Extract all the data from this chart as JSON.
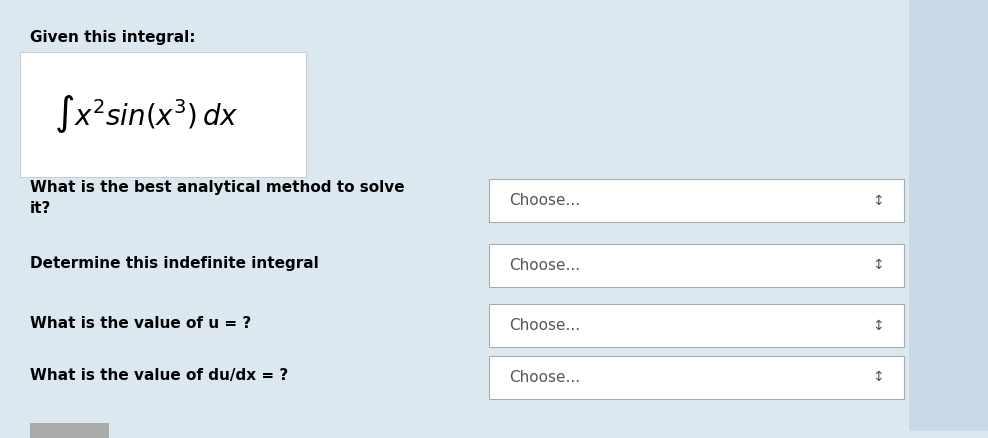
{
  "bg_color": "#dce8f0",
  "right_panel_color": "#c8d8e4",
  "formula_box_color": "#ffffff",
  "dropdown_box_color": "#ffffff",
  "dropdown_border_color": "#aaaaaa",
  "title_text": "Given this integral:",
  "formula_text": "$\\int x^2 \\mathit{sin}(x^3)\\, dx$",
  "questions": [
    "What is the best analytical method to solve\nit?",
    "Determine this indefinite integral",
    "What is the value of u = ?",
    "What is the value of du/dx = ?"
  ],
  "dropdown_label": "Choose...",
  "text_color": "#000000",
  "dropdown_text_color": "#555555",
  "title_fontsize": 11,
  "question_fontsize": 11,
  "formula_fontsize": 20,
  "dropdown_fontsize": 11
}
